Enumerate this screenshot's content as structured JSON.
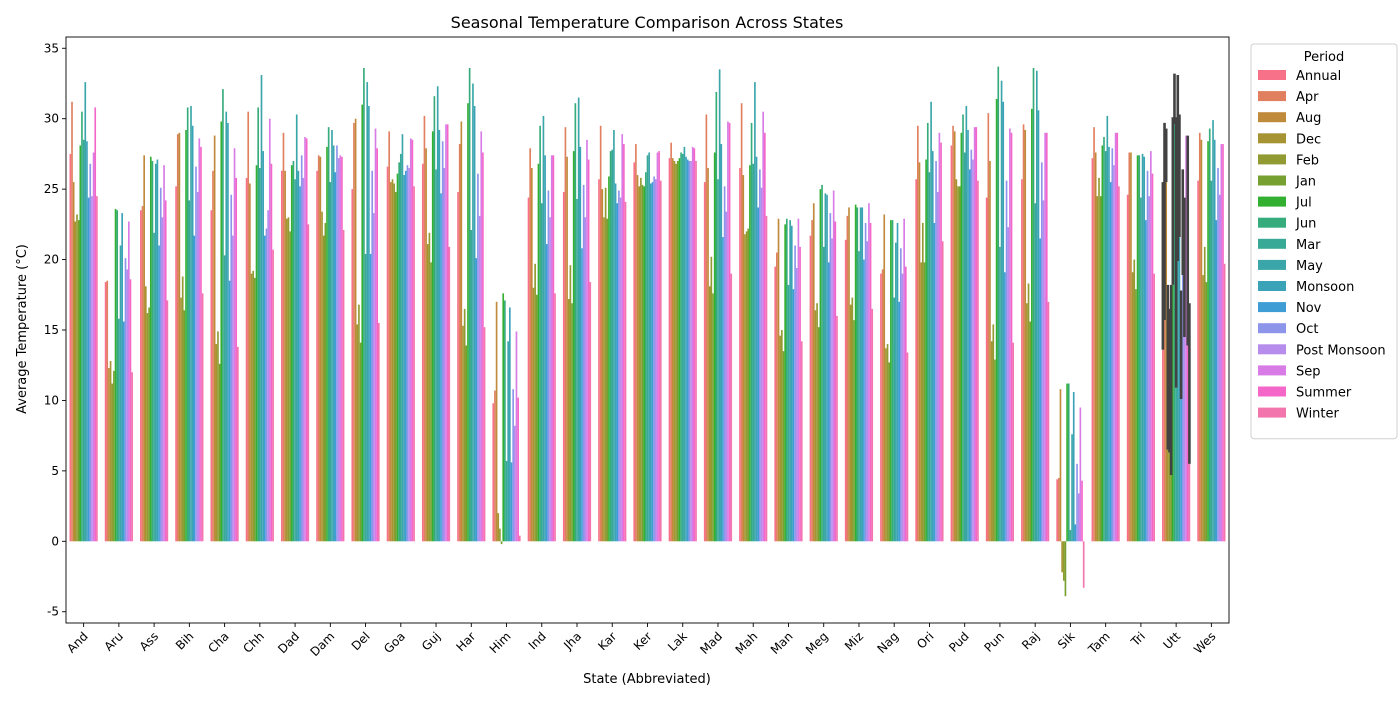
{
  "chart_data": {
    "type": "bar",
    "title": "Seasonal Temperature Comparison Across States",
    "xlabel": "State (Abbreviated)",
    "ylabel": "Average Temperature (°C)",
    "ylim": [
      -5.8,
      35.8
    ],
    "yticks": [
      -5,
      0,
      5,
      10,
      15,
      20,
      25,
      30,
      35
    ],
    "grid": false,
    "legend": {
      "title": "Period",
      "placement": "right"
    },
    "categories": [
      "And",
      "Aru",
      "Ass",
      "Bih",
      "Cha",
      "Chh",
      "Dad",
      "Dam",
      "Del",
      "Goa",
      "Guj",
      "Har",
      "Him",
      "Ind",
      "Jha",
      "Kar",
      "Ker",
      "Lak",
      "Mad",
      "Mah",
      "Man",
      "Meg",
      "Miz",
      "Nag",
      "Ori",
      "Pud",
      "Pun",
      "Raj",
      "Sik",
      "Tam",
      "Tri",
      "Utt",
      "Wes"
    ],
    "series": [
      {
        "name": "Annual",
        "color": "#f77189",
        "values": [
          27.5,
          18.4,
          23.5,
          25.2,
          23.5,
          25.8,
          26.3,
          26.3,
          25.0,
          26.6,
          26.8,
          24.8,
          9.8,
          24.4,
          24.8,
          25.7,
          26.9,
          27.2,
          25.5,
          26.5,
          19.5,
          21.7,
          21.4,
          19.0,
          25.7,
          28.1,
          24.4,
          25.7,
          4.4,
          27.2,
          24.6,
          13.6,
          25.6
        ]
      },
      {
        "name": "Apr",
        "color": "#e1805f",
        "values": [
          31.2,
          18.5,
          23.8,
          28.9,
          26.3,
          30.5,
          29.0,
          27.4,
          29.7,
          29.1,
          30.2,
          28.2,
          10.7,
          27.9,
          29.4,
          29.5,
          28.2,
          28.3,
          30.3,
          31.1,
          20.5,
          22.8,
          23.1,
          19.3,
          29.5,
          29.5,
          30.4,
          29.6,
          4.5,
          29.4,
          27.6,
          15.7,
          29.0
        ]
      },
      {
        "name": "Aug",
        "color": "#c08a3b",
        "values": [
          25.5,
          12.3,
          27.4,
          29.0,
          28.8,
          25.4,
          26.3,
          27.3,
          30.0,
          25.5,
          27.9,
          29.8,
          17.0,
          26.5,
          27.3,
          25.0,
          26.0,
          27.2,
          26.5,
          26.0,
          22.9,
          24.0,
          23.7,
          23.2,
          26.9,
          29.1,
          27.0,
          29.2,
          10.8,
          27.6,
          27.6,
          25.5,
          28.5
        ]
      },
      {
        "name": "Dec",
        "color": "#a69432",
        "values": [
          22.7,
          12.8,
          18.1,
          17.3,
          14.0,
          19.0,
          22.9,
          23.4,
          15.4,
          25.7,
          21.1,
          15.3,
          2.0,
          18.0,
          17.2,
          23.0,
          25.2,
          27.0,
          18.1,
          21.8,
          14.6,
          16.4,
          16.8,
          13.7,
          19.8,
          25.7,
          14.2,
          16.9,
          -2.2,
          24.5,
          19.1,
          6.5,
          18.9
        ]
      },
      {
        "name": "Feb",
        "color": "#919b31",
        "values": [
          23.2,
          11.2,
          16.2,
          18.8,
          14.9,
          19.2,
          23.0,
          21.7,
          16.8,
          25.4,
          21.9,
          16.5,
          0.9,
          19.7,
          19.6,
          25.1,
          25.8,
          26.8,
          20.2,
          22.0,
          15.0,
          16.9,
          17.3,
          14.0,
          22.6,
          25.2,
          15.4,
          18.3,
          -2.8,
          25.8,
          20.0,
          6.3,
          20.9
        ]
      },
      {
        "name": "Jan",
        "color": "#76a131",
        "values": [
          22.8,
          12.1,
          16.6,
          16.4,
          12.6,
          18.7,
          22.0,
          22.6,
          14.1,
          24.8,
          19.8,
          13.9,
          -0.2,
          17.5,
          16.9,
          22.9,
          25.3,
          27.0,
          17.6,
          22.2,
          13.5,
          15.2,
          15.7,
          12.7,
          19.8,
          25.2,
          12.9,
          15.6,
          -3.9,
          24.5,
          17.9,
          4.7,
          18.4
        ]
      },
      {
        "name": "Jul",
        "color": "#33b031",
        "values": [
          28.1,
          23.6,
          27.3,
          29.2,
          29.8,
          26.7,
          26.7,
          28.0,
          31.0,
          26.1,
          29.1,
          31.1,
          17.6,
          26.8,
          27.7,
          25.9,
          25.2,
          27.2,
          27.6,
          26.7,
          22.5,
          25.0,
          23.9,
          22.8,
          27.1,
          29.0,
          31.4,
          30.7,
          11.2,
          28.1,
          27.4,
          18.2,
          28.4
        ]
      },
      {
        "name": "Jun",
        "color": "#36ac7c",
        "values": [
          30.5,
          23.5,
          27.0,
          30.8,
          32.1,
          30.8,
          27.0,
          29.4,
          33.6,
          26.9,
          31.6,
          33.6,
          17.1,
          29.5,
          31.1,
          27.7,
          26.2,
          27.6,
          31.9,
          29.7,
          22.9,
          25.3,
          23.7,
          22.8,
          29.7,
          30.3,
          33.7,
          33.6,
          11.2,
          28.7,
          27.4,
          29.6,
          29.3
        ]
      },
      {
        "name": "Mar",
        "color": "#38a996",
        "values": [
          28.5,
          15.8,
          21.9,
          24.2,
          20.3,
          26.5,
          25.7,
          25.5,
          20.4,
          27.5,
          26.4,
          22.1,
          5.7,
          24.0,
          24.3,
          27.8,
          27.4,
          27.5,
          25.7,
          26.8,
          18.2,
          20.9,
          20.6,
          17.3,
          26.2,
          27.6,
          20.9,
          24.0,
          0.8,
          27.7,
          24.4,
          10.9,
          25.6
        ]
      },
      {
        "name": "May",
        "color": "#3aa6a9",
        "values": [
          32.6,
          21.0,
          26.8,
          30.9,
          30.5,
          33.1,
          30.3,
          29.2,
          32.6,
          28.9,
          32.3,
          32.5,
          14.2,
          30.2,
          31.5,
          29.2,
          27.6,
          28.0,
          33.5,
          32.6,
          22.8,
          24.7,
          23.7,
          21.2,
          31.2,
          30.9,
          32.7,
          33.4,
          7.6,
          30.2,
          27.5,
          19.9,
          29.9
        ]
      },
      {
        "name": "Monsoon",
        "color": "#3ba3b8",
        "values": [
          28.4,
          23.3,
          27.1,
          29.5,
          29.7,
          27.7,
          26.3,
          28.1,
          30.9,
          26.0,
          29.2,
          30.9,
          16.6,
          27.4,
          28.0,
          25.4,
          25.4,
          27.3,
          28.2,
          27.3,
          22.4,
          24.6,
          23.7,
          22.6,
          27.7,
          29.2,
          31.2,
          30.6,
          10.6,
          28.0,
          27.3,
          21.6,
          28.5
        ]
      },
      {
        "name": "Nov",
        "color": "#3f9dd6",
        "values": [
          24.4,
          15.6,
          21.0,
          21.7,
          18.5,
          21.7,
          25.2,
          26.2,
          20.4,
          26.3,
          24.7,
          20.1,
          5.6,
          21.1,
          20.8,
          24.0,
          25.5,
          27.1,
          21.6,
          23.7,
          17.9,
          19.8,
          20.0,
          17.0,
          22.6,
          26.4,
          19.1,
          21.5,
          1.2,
          25.5,
          22.8,
          10.1,
          22.8
        ]
      },
      {
        "name": "Oct",
        "color": "#8d95ea",
        "values": [
          26.8,
          20.1,
          25.1,
          26.6,
          24.6,
          22.2,
          27.4,
          28.1,
          26.3,
          26.7,
          28.4,
          26.1,
          10.8,
          24.9,
          25.3,
          24.9,
          25.9,
          27.0,
          25.2,
          26.4,
          21.0,
          23.3,
          22.6,
          20.8,
          27.0,
          27.8,
          25.6,
          26.9,
          5.5,
          27.9,
          26.3,
          18.9,
          26.5
        ]
      },
      {
        "name": "Post Monsoon",
        "color": "#b68ced",
        "values": [
          24.5,
          19.3,
          23.0,
          24.8,
          21.7,
          23.5,
          25.8,
          27.2,
          23.3,
          26.5,
          26.5,
          23.1,
          8.2,
          23.0,
          23.0,
          24.4,
          25.7,
          27.0,
          23.4,
          25.1,
          19.4,
          21.5,
          21.3,
          19.0,
          24.8,
          27.1,
          22.3,
          24.2,
          3.4,
          26.7,
          24.5,
          14.5,
          24.6
        ]
      },
      {
        "name": "Sep",
        "color": "#d87be6",
        "values": [
          27.6,
          22.7,
          26.7,
          28.6,
          27.9,
          30.0,
          28.7,
          27.4,
          29.3,
          28.6,
          29.6,
          29.1,
          14.9,
          27.4,
          28.5,
          28.9,
          27.6,
          28.0,
          29.8,
          30.5,
          22.9,
          24.9,
          24.0,
          22.9,
          29.0,
          29.4,
          29.3,
          29.0,
          9.5,
          29.0,
          27.7,
          28.8,
          28.2
        ]
      },
      {
        "name": "Summer",
        "color": "#f467c9",
        "values": [
          30.8,
          18.6,
          24.2,
          28.0,
          25.8,
          26.8,
          28.6,
          27.3,
          27.9,
          28.5,
          29.6,
          27.6,
          10.2,
          27.4,
          27.1,
          28.2,
          27.7,
          27.9,
          29.7,
          29.0,
          20.9,
          22.7,
          22.6,
          19.5,
          28.3,
          29.4,
          29.0,
          29.0,
          4.3,
          29.0,
          26.1,
          13.9,
          28.2
        ]
      },
      {
        "name": "Winter",
        "color": "#f375ad",
        "values": [
          24.5,
          12.0,
          17.1,
          17.6,
          13.8,
          20.7,
          22.5,
          22.1,
          15.5,
          25.2,
          20.9,
          15.2,
          0.4,
          17.6,
          18.4,
          24.1,
          25.6,
          27.0,
          19.0,
          23.1,
          14.2,
          16.0,
          16.5,
          13.4,
          21.3,
          25.6,
          14.1,
          17.0,
          -3.3,
          25.2,
          19.0,
          5.5,
          19.7
        ]
      }
    ],
    "error_bars": {
      "category": "Utt",
      "ranges": [
        [
          13.6,
          25.5
        ],
        [
          15.7,
          29.7
        ],
        [
          25.5,
          29.3
        ],
        [
          6.5,
          18.2
        ],
        [
          6.3,
          16.5
        ],
        [
          4.7,
          18.2
        ],
        [
          18.2,
          30.1
        ],
        [
          29.6,
          33.2
        ],
        [
          10.9,
          30.1
        ],
        [
          19.9,
          33.1
        ],
        [
          21.6,
          30.3
        ],
        [
          10.1,
          17.8
        ],
        [
          18.9,
          26.4
        ],
        [
          14.5,
          24.4
        ],
        [
          28.8,
          28.8
        ],
        [
          13.9,
          28.8
        ],
        [
          5.5,
          16.9
        ]
      ]
    }
  }
}
